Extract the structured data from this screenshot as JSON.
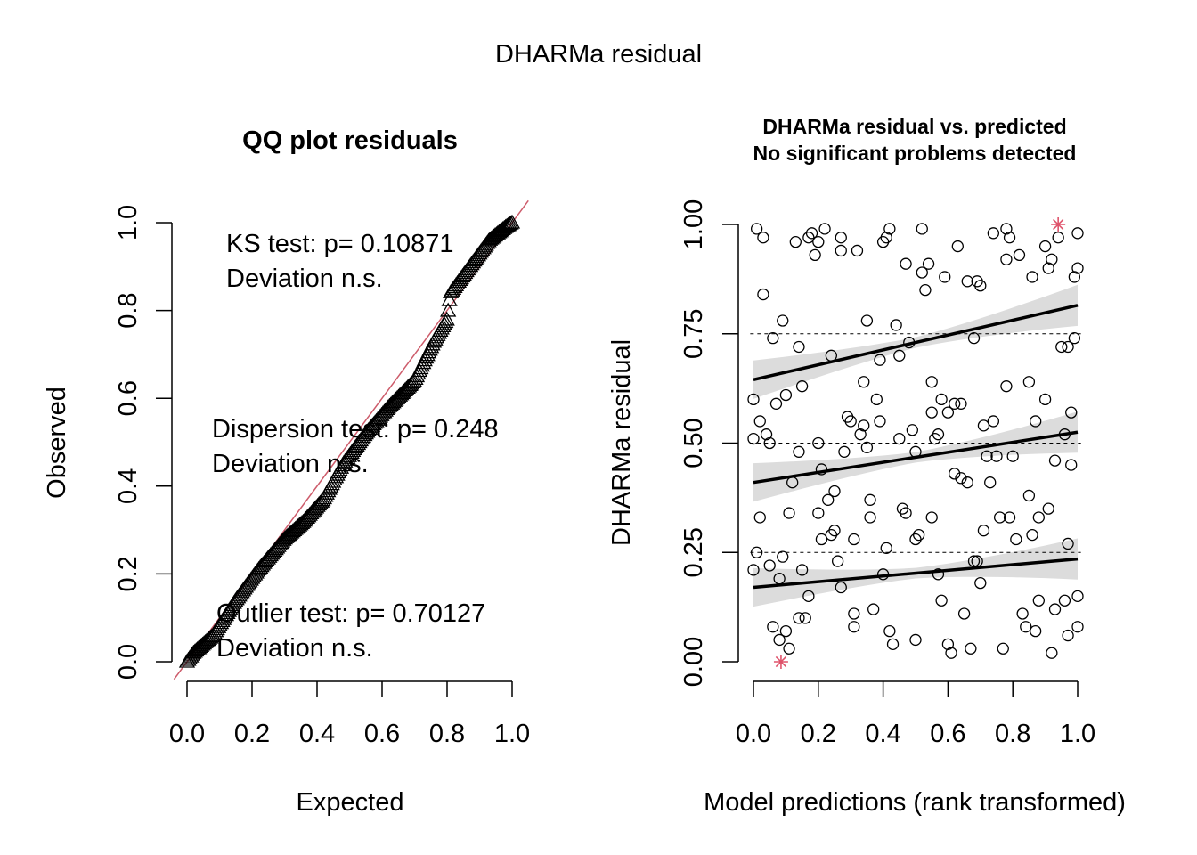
{
  "page_title": "DHARMa residual",
  "chart_data": [
    {
      "type": "scatter",
      "title": "QQ plot residuals",
      "xlabel": "Expected",
      "ylabel": "Observed",
      "xlim": [
        0,
        1
      ],
      "ylim": [
        0,
        1
      ],
      "x_ticks": [
        "0.0",
        "0.2",
        "0.4",
        "0.6",
        "0.8",
        "1.0"
      ],
      "y_ticks": [
        "0.0",
        "0.2",
        "0.4",
        "0.6",
        "0.8",
        "1.0"
      ],
      "marker": "triangle",
      "reference_line": {
        "slope": 1,
        "intercept": 0,
        "color": "#CD5C6B"
      },
      "qq_anchors": [
        [
          0.0,
          0.0
        ],
        [
          0.02,
          0.02
        ],
        [
          0.08,
          0.06
        ],
        [
          0.15,
          0.14
        ],
        [
          0.22,
          0.21
        ],
        [
          0.3,
          0.28
        ],
        [
          0.36,
          0.32
        ],
        [
          0.42,
          0.37
        ],
        [
          0.48,
          0.45
        ],
        [
          0.55,
          0.52
        ],
        [
          0.62,
          0.58
        ],
        [
          0.7,
          0.64
        ],
        [
          0.76,
          0.73
        ],
        [
          0.8,
          0.78
        ],
        [
          0.81,
          0.84
        ],
        [
          0.87,
          0.9
        ],
        [
          0.93,
          0.96
        ],
        [
          0.98,
          0.99
        ],
        [
          1.0,
          1.0
        ]
      ],
      "n_points": 250,
      "annotations": [
        {
          "lines": [
            "KS test: p= 0.10871",
            "Deviation  n.s."
          ]
        },
        {
          "lines": [
            "Dispersion test: p= 0.248",
            "Deviation  n.s."
          ]
        },
        {
          "lines": [
            "Outlier test: p= 0.70127",
            "Deviation  n.s."
          ]
        }
      ]
    },
    {
      "type": "scatter",
      "title": "DHARMa residual vs. predicted",
      "subtitle": "No significant problems detected",
      "xlabel": "Model predictions (rank transformed)",
      "ylabel": "DHARMa residual",
      "xlim": [
        0,
        1
      ],
      "ylim": [
        0,
        1
      ],
      "x_ticks": [
        "0.0",
        "0.2",
        "0.4",
        "0.6",
        "0.8",
        "1.0"
      ],
      "y_ticks": [
        "0.00",
        "0.25",
        "0.50",
        "0.75",
        "1.00"
      ],
      "y_tick_values": [
        0,
        0.25,
        0.5,
        0.75,
        1.0
      ],
      "reference_lines": [
        0.25,
        0.5,
        0.75
      ],
      "quantile_fits": [
        {
          "quantile": 0.25,
          "start": 0.17,
          "end": 0.235
        },
        {
          "quantile": 0.5,
          "start": 0.41,
          "end": 0.525
        },
        {
          "quantile": 0.75,
          "start": 0.645,
          "end": 0.815
        }
      ],
      "outliers": [
        {
          "x": 0.085,
          "y": 0.0,
          "color": "#DF536B"
        },
        {
          "x": 0.94,
          "y": 1.0,
          "color": "#DF536B"
        }
      ],
      "points": [
        [
          0.0,
          0.6
        ],
        [
          0.01,
          0.99
        ],
        [
          0.03,
          0.97
        ],
        [
          0.0,
          0.51
        ],
        [
          0.02,
          0.55
        ],
        [
          0.03,
          0.84
        ],
        [
          0.04,
          0.52
        ],
        [
          0.05,
          0.5
        ],
        [
          0.0,
          0.21
        ],
        [
          0.01,
          0.25
        ],
        [
          0.02,
          0.33
        ],
        [
          0.05,
          0.22
        ],
        [
          0.06,
          0.74
        ],
        [
          0.07,
          0.59
        ],
        [
          0.09,
          0.78
        ],
        [
          0.1,
          0.61
        ],
        [
          0.06,
          0.08
        ],
        [
          0.08,
          0.05
        ],
        [
          0.1,
          0.07
        ],
        [
          0.11,
          0.03
        ],
        [
          0.09,
          0.24
        ],
        [
          0.08,
          0.19
        ],
        [
          0.11,
          0.34
        ],
        [
          0.12,
          0.41
        ],
        [
          0.13,
          0.96
        ],
        [
          0.14,
          0.72
        ],
        [
          0.14,
          0.48
        ],
        [
          0.15,
          0.63
        ],
        [
          0.14,
          0.1
        ],
        [
          0.15,
          0.21
        ],
        [
          0.17,
          0.15
        ],
        [
          0.16,
          0.1
        ],
        [
          0.17,
          0.97
        ],
        [
          0.18,
          0.98
        ],
        [
          0.19,
          0.93
        ],
        [
          0.2,
          0.96
        ],
        [
          0.2,
          0.5
        ],
        [
          0.2,
          0.34
        ],
        [
          0.21,
          0.28
        ],
        [
          0.21,
          0.44
        ],
        [
          0.22,
          0.99
        ],
        [
          0.23,
          0.37
        ],
        [
          0.24,
          0.29
        ],
        [
          0.25,
          0.3
        ],
        [
          0.24,
          0.7
        ],
        [
          0.25,
          0.39
        ],
        [
          0.26,
          0.23
        ],
        [
          0.27,
          0.17
        ],
        [
          0.27,
          0.97
        ],
        [
          0.27,
          0.94
        ],
        [
          0.28,
          0.48
        ],
        [
          0.29,
          0.56
        ],
        [
          0.3,
          0.55
        ],
        [
          0.31,
          0.28
        ],
        [
          0.31,
          0.11
        ],
        [
          0.31,
          0.08
        ],
        [
          0.32,
          0.94
        ],
        [
          0.33,
          0.52
        ],
        [
          0.34,
          0.54
        ],
        [
          0.34,
          0.64
        ],
        [
          0.35,
          0.78
        ],
        [
          0.35,
          0.49
        ],
        [
          0.36,
          0.37
        ],
        [
          0.36,
          0.33
        ],
        [
          0.37,
          0.12
        ],
        [
          0.38,
          0.6
        ],
        [
          0.39,
          0.69
        ],
        [
          0.39,
          0.55
        ],
        [
          0.4,
          0.96
        ],
        [
          0.41,
          0.97
        ],
        [
          0.42,
          0.99
        ],
        [
          0.41,
          0.26
        ],
        [
          0.4,
          0.2
        ],
        [
          0.42,
          0.07
        ],
        [
          0.43,
          0.04
        ],
        [
          0.44,
          0.77
        ],
        [
          0.45,
          0.7
        ],
        [
          0.45,
          0.51
        ],
        [
          0.46,
          0.35
        ],
        [
          0.47,
          0.34
        ],
        [
          0.47,
          0.91
        ],
        [
          0.48,
          0.73
        ],
        [
          0.49,
          0.53
        ],
        [
          0.5,
          0.48
        ],
        [
          0.5,
          0.28
        ],
        [
          0.51,
          0.29
        ],
        [
          0.5,
          0.05
        ],
        [
          0.52,
          0.99
        ],
        [
          0.52,
          0.89
        ],
        [
          0.53,
          0.85
        ],
        [
          0.54,
          0.91
        ],
        [
          0.55,
          0.64
        ],
        [
          0.55,
          0.57
        ],
        [
          0.55,
          0.33
        ],
        [
          0.56,
          0.51
        ],
        [
          0.57,
          0.52
        ],
        [
          0.57,
          0.2
        ],
        [
          0.58,
          0.6
        ],
        [
          0.58,
          0.14
        ],
        [
          0.59,
          0.88
        ],
        [
          0.6,
          0.57
        ],
        [
          0.6,
          0.04
        ],
        [
          0.61,
          0.02
        ],
        [
          0.62,
          0.59
        ],
        [
          0.62,
          0.43
        ],
        [
          0.63,
          0.95
        ],
        [
          0.64,
          0.59
        ],
        [
          0.64,
          0.42
        ],
        [
          0.65,
          0.11
        ],
        [
          0.66,
          0.87
        ],
        [
          0.66,
          0.41
        ],
        [
          0.67,
          0.03
        ],
        [
          0.68,
          0.74
        ],
        [
          0.69,
          0.87
        ],
        [
          0.7,
          0.86
        ],
        [
          0.68,
          0.23
        ],
        [
          0.69,
          0.23
        ],
        [
          0.7,
          0.18
        ],
        [
          0.71,
          0.3
        ],
        [
          0.71,
          0.54
        ],
        [
          0.72,
          0.47
        ],
        [
          0.73,
          0.41
        ],
        [
          0.74,
          0.98
        ],
        [
          0.74,
          0.55
        ],
        [
          0.75,
          0.47
        ],
        [
          0.76,
          0.33
        ],
        [
          0.77,
          0.03
        ],
        [
          0.78,
          0.99
        ],
        [
          0.78,
          0.92
        ],
        [
          0.78,
          0.63
        ],
        [
          0.79,
          0.97
        ],
        [
          0.79,
          0.33
        ],
        [
          0.8,
          0.47
        ],
        [
          0.81,
          0.28
        ],
        [
          0.82,
          0.93
        ],
        [
          0.83,
          0.11
        ],
        [
          0.84,
          0.08
        ],
        [
          0.85,
          0.64
        ],
        [
          0.85,
          0.38
        ],
        [
          0.86,
          0.88
        ],
        [
          0.86,
          0.29
        ],
        [
          0.87,
          0.07
        ],
        [
          0.87,
          0.55
        ],
        [
          0.88,
          0.33
        ],
        [
          0.88,
          0.14
        ],
        [
          0.9,
          0.95
        ],
        [
          0.9,
          0.6
        ],
        [
          0.91,
          0.9
        ],
        [
          0.91,
          0.35
        ],
        [
          0.92,
          0.92
        ],
        [
          0.92,
          0.02
        ],
        [
          0.93,
          0.46
        ],
        [
          0.93,
          0.12
        ],
        [
          0.94,
          0.97
        ],
        [
          0.95,
          0.72
        ],
        [
          0.96,
          0.14
        ],
        [
          0.96,
          0.52
        ],
        [
          0.97,
          0.06
        ],
        [
          0.97,
          0.27
        ],
        [
          0.98,
          0.57
        ],
        [
          0.99,
          0.88
        ],
        [
          1.0,
          0.98
        ],
        [
          1.0,
          0.9
        ],
        [
          1.0,
          0.15
        ],
        [
          1.0,
          0.08
        ],
        [
          0.99,
          0.74
        ],
        [
          0.98,
          0.45
        ],
        [
          0.97,
          0.72
        ]
      ]
    }
  ]
}
